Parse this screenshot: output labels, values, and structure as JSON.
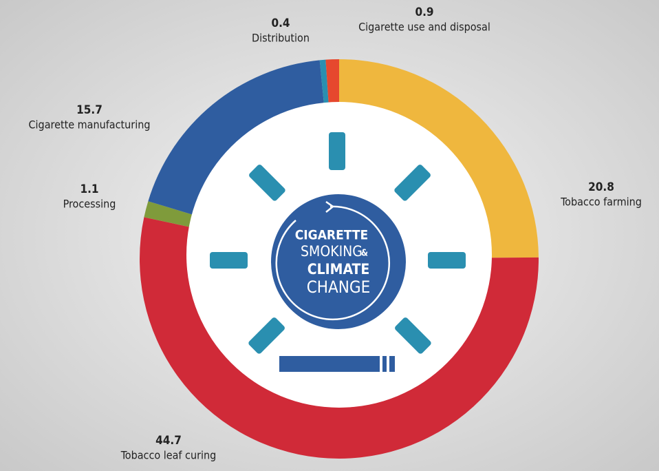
{
  "chart_data": {
    "type": "donut",
    "categories": [
      "Tobacco farming",
      "Tobacco leaf curing",
      "Processing",
      "Cigarette manufacturing",
      "Distribution",
      "Cigarette use and disposal"
    ],
    "values": [
      20.8,
      44.7,
      1.1,
      15.7,
      0.4,
      0.9
    ],
    "colors": [
      "#efb73e",
      "#d02a38",
      "#7f9b3b",
      "#2f5da0",
      "#2a8fb0",
      "#e6482e"
    ],
    "center_text": [
      "CIGARETTE",
      "SMOKING",
      "&",
      "CLIMATE",
      "CHANGE"
    ]
  }
}
